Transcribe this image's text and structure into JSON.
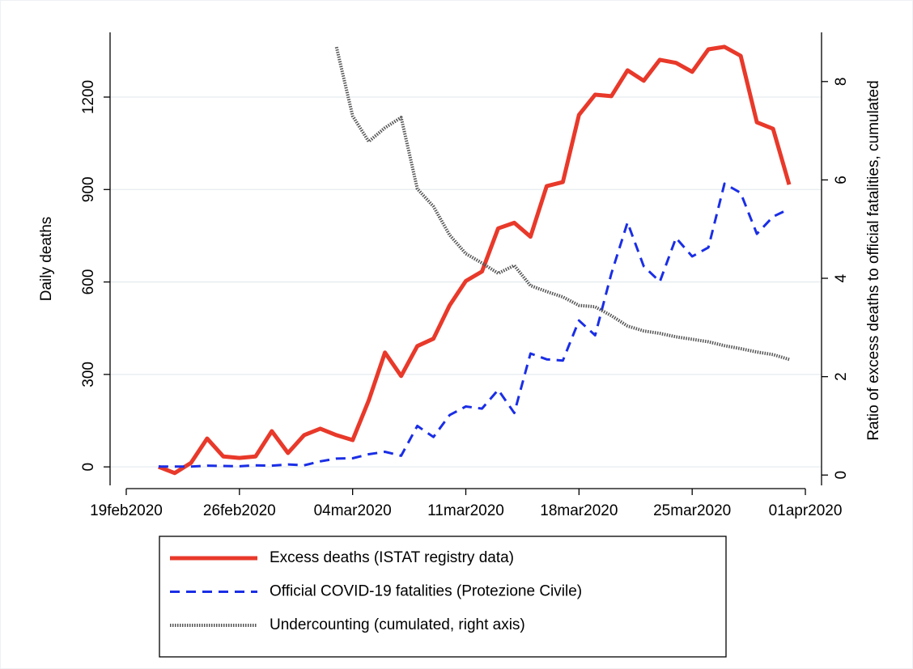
{
  "chart_data": {
    "type": "line",
    "y_label": "Daily deaths",
    "y2_label": "Ratio of excess deaths to official fatalities, cumulated",
    "x": [
      "2020-02-21",
      "2020-02-22",
      "2020-02-23",
      "2020-02-24",
      "2020-02-25",
      "2020-02-26",
      "2020-02-27",
      "2020-02-28",
      "2020-02-29",
      "2020-03-01",
      "2020-03-02",
      "2020-03-03",
      "2020-03-04",
      "2020-03-05",
      "2020-03-06",
      "2020-03-07",
      "2020-03-08",
      "2020-03-09",
      "2020-03-10",
      "2020-03-11",
      "2020-03-12",
      "2020-03-13",
      "2020-03-14",
      "2020-03-15",
      "2020-03-16",
      "2020-03-17",
      "2020-03-18",
      "2020-03-19",
      "2020-03-20",
      "2020-03-21",
      "2020-03-22",
      "2020-03-23",
      "2020-03-24",
      "2020-03-25",
      "2020-03-26",
      "2020-03-27",
      "2020-03-28",
      "2020-03-29",
      "2020-03-30",
      "2020-03-31"
    ],
    "series": [
      {
        "name": "Excess deaths (ISTAT registry data)",
        "color": "#e8392a",
        "style": "solid",
        "values": [
          0,
          -20,
          13,
          92,
          34,
          29,
          34,
          116,
          45,
          103,
          124,
          103,
          87,
          216,
          371,
          295,
          392,
          416,
          524,
          603,
          634,
          774,
          792,
          747,
          911,
          924,
          1142,
          1208,
          1203,
          1287,
          1253,
          1321,
          1311,
          1282,
          1355,
          1363,
          1334,
          1118,
          1097,
          916
        ]
      },
      {
        "name": "Official COVID-19 fatalities (Protezione Civile)",
        "color": "#1a2ee6",
        "style": "dashed",
        "values": [
          1,
          1,
          1,
          4,
          3,
          2,
          5,
          4,
          8,
          5,
          18,
          27,
          28,
          41,
          49,
          36,
          133,
          97,
          168,
          196,
          189,
          250,
          175,
          368,
          349,
          345,
          475,
          427,
          627,
          793,
          651,
          601,
          743,
          683,
          712,
          919,
          889,
          756,
          812,
          837
        ]
      },
      {
        "name": "Undercounting (cumulated, right axis)",
        "color": "#555555",
        "style": "dotted",
        "axis": "y2",
        "values": [
          null,
          null,
          null,
          null,
          null,
          null,
          null,
          null,
          null,
          null,
          null,
          8.7,
          7.3,
          6.78,
          7.06,
          7.27,
          5.82,
          5.46,
          4.88,
          4.5,
          4.31,
          4.1,
          4.26,
          3.85,
          3.73,
          3.62,
          3.45,
          3.42,
          3.24,
          3.03,
          2.93,
          2.88,
          2.81,
          2.76,
          2.71,
          2.63,
          2.57,
          2.5,
          2.45,
          2.35
        ]
      }
    ],
    "xlim": [
      "2020-02-18",
      "2020-04-02"
    ],
    "xticks": [
      {
        "value": "2020-02-19",
        "label": "19feb2020"
      },
      {
        "value": "2020-02-26",
        "label": "26feb2020"
      },
      {
        "value": "2020-03-04",
        "label": "04mar2020"
      },
      {
        "value": "2020-03-11",
        "label": "11mar2020"
      },
      {
        "value": "2020-03-18",
        "label": "18mar2020"
      },
      {
        "value": "2020-03-25",
        "label": "25mar2020"
      },
      {
        "value": "2020-04-01",
        "label": "01apr2020"
      }
    ],
    "ylim": [
      -60,
      1410
    ],
    "yticks": [
      0,
      300,
      600,
      900,
      1200
    ],
    "y2lim": [
      -0.21,
      9.0
    ],
    "y2ticks": [
      0,
      2,
      4,
      6,
      8
    ],
    "grid": true,
    "legend": "bottom"
  }
}
